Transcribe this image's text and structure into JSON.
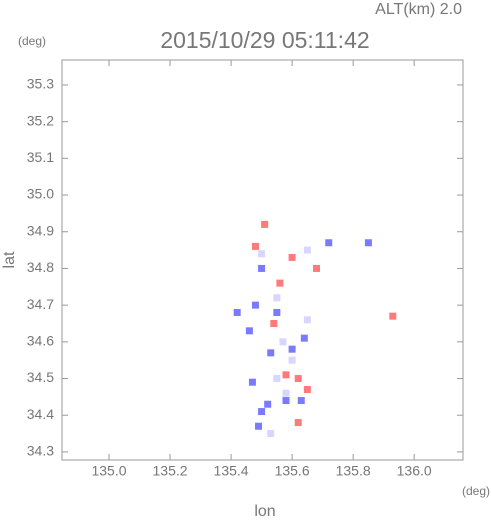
{
  "chart_data": {
    "type": "scatter",
    "title": "2015/10/29 05:11:42",
    "subtitle": "ALT(km) 2.0",
    "y_unit": "(deg)",
    "x_unit": "(deg)",
    "xlabel": "lon",
    "ylabel": "lat",
    "xlim": [
      134.846,
      136.16
    ],
    "ylim": [
      34.278,
      35.368
    ],
    "xticks": [
      {
        "value": 135,
        "label": "135.0"
      },
      135.2,
      135.4,
      135.6,
      135.8,
      {
        "value": 136,
        "label": "136.0"
      }
    ],
    "yticks": [
      34.3,
      34.4,
      34.5,
      34.6,
      34.7,
      34.8,
      34.9,
      {
        "value": 35,
        "label": "35.0"
      },
      35.1,
      35.2,
      35.3
    ],
    "series": [
      {
        "color": "#7a7aff",
        "x": [
          135.52,
          135.5,
          135.47,
          135.58,
          135.63,
          135.46,
          135.53,
          135.48,
          135.55,
          135.64,
          135.85,
          135.72,
          135.42,
          135.5,
          135.6,
          135.49
        ],
        "values": [
          34.43,
          34.41,
          34.49,
          34.44,
          34.44,
          34.63,
          34.57,
          34.7,
          34.68,
          34.61,
          34.87,
          34.87,
          34.68,
          34.8,
          34.58,
          34.37
        ]
      },
      {
        "color": "#ff7a7a",
        "x": [
          135.51,
          135.6,
          135.68,
          135.62,
          135.65,
          135.58,
          135.54,
          135.62,
          135.93,
          135.56,
          135.48
        ],
        "values": [
          34.92,
          34.83,
          34.8,
          34.5,
          34.47,
          34.51,
          34.65,
          34.38,
          34.67,
          34.76,
          34.86
        ]
      },
      {
        "color": "#d6d6ff",
        "x": [
          135.57,
          135.6,
          135.55,
          135.65,
          135.55,
          135.58,
          135.5,
          135.65,
          135.53
        ],
        "values": [
          34.6,
          34.55,
          34.72,
          34.66,
          34.5,
          34.46,
          34.84,
          34.85,
          34.35
        ]
      }
    ]
  }
}
